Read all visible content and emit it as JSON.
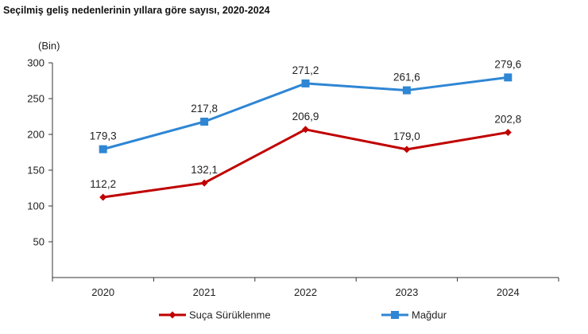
{
  "page_title": "Seçilmiş geliş nedenlerinin yıllara göre sayısı, 2020-2024",
  "chart_data": {
    "type": "line",
    "title": "Seçilmiş geliş nedenlerinin yıllara göre sayısı, 2020-2024",
    "unit_label": "(Bin)",
    "xlabel": "",
    "ylabel": "",
    "categories": [
      "2020",
      "2021",
      "2022",
      "2023",
      "2024"
    ],
    "ylim": [
      0,
      300
    ],
    "yticks": [
      50,
      100,
      150,
      200,
      250,
      300
    ],
    "grid": false,
    "legend_position": "bottom",
    "series": [
      {
        "name": "Suça Sürüklenme",
        "color": "#c00000",
        "marker": "diamond",
        "values": [
          112.2,
          132.1,
          206.9,
          179.0,
          202.8
        ],
        "labels": [
          "112,2",
          "132,1",
          "206,9",
          "179,0",
          "202,8"
        ]
      },
      {
        "name": "Mağdur",
        "color": "#2e86d4",
        "marker": "square",
        "values": [
          179.3,
          217.8,
          271.2,
          261.6,
          279.6
        ],
        "labels": [
          "179,3",
          "217,8",
          "271,2",
          "261,6",
          "279,6"
        ]
      }
    ]
  }
}
